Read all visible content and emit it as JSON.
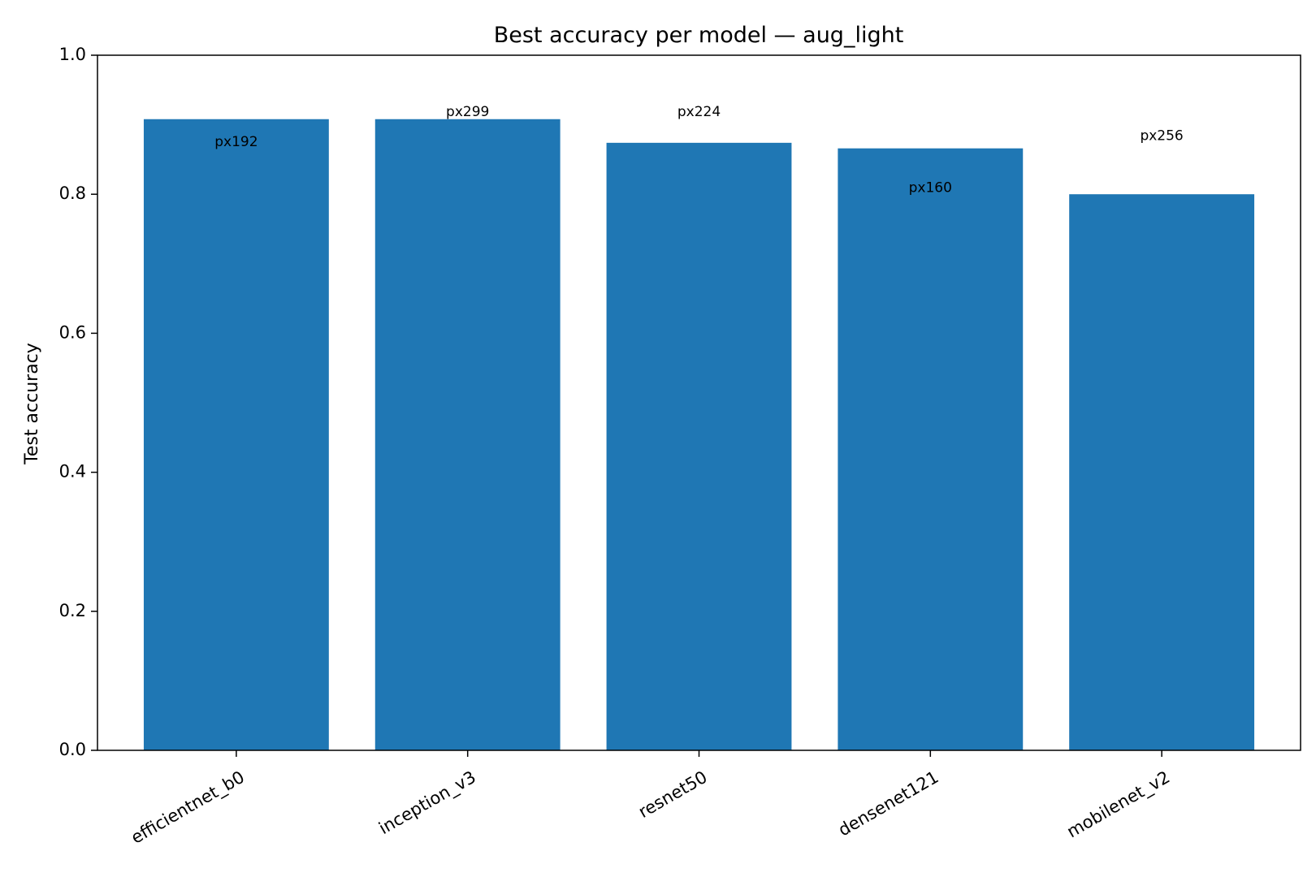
{
  "chart_data": {
    "type": "bar",
    "title": "Best accuracy per model — aug_light",
    "xlabel": "",
    "ylabel": "Test accuracy",
    "ylim": [
      0,
      1.0
    ],
    "yticks": [
      0.0,
      0.2,
      0.4,
      0.6,
      0.8,
      1.0
    ],
    "ytick_labels": [
      "0.0",
      "0.2",
      "0.4",
      "0.6",
      "0.8",
      "1.0"
    ],
    "grid": false,
    "bar_color": "#1f77b4",
    "categories": [
      "efficientnet_b0",
      "inception_v3",
      "resnet50",
      "densenet121",
      "mobilenet_v2"
    ],
    "values": [
      0.908,
      0.908,
      0.874,
      0.866,
      0.8
    ],
    "annotations": [
      {
        "text": "px192",
        "y": 0.875
      },
      {
        "text": "px299",
        "y": 0.918
      },
      {
        "text": "px224",
        "y": 0.918
      },
      {
        "text": "px160",
        "y": 0.809
      },
      {
        "text": "px256",
        "y": 0.884
      }
    ]
  }
}
